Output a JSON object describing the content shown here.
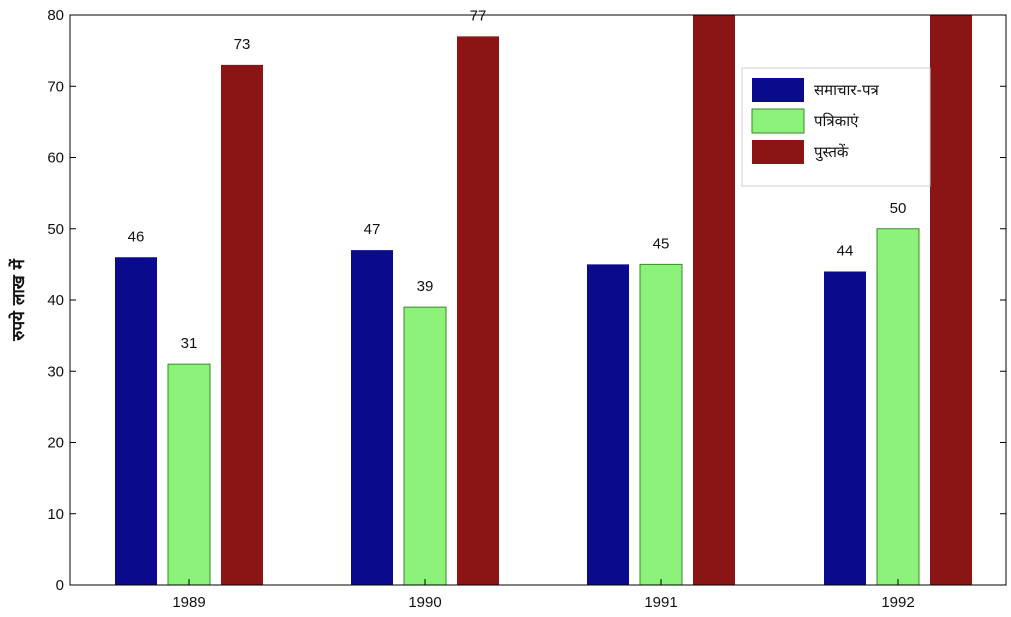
{
  "chart_data": {
    "type": "bar",
    "title": "",
    "xlabel": "",
    "ylabel": "रुपये लाख में",
    "ylim": [
      0,
      80
    ],
    "yticks": [
      0,
      10,
      20,
      30,
      40,
      50,
      60,
      70,
      80
    ],
    "categories": [
      "1989",
      "1990",
      "1991",
      "1992"
    ],
    "legend_position": "top-right",
    "grid": false,
    "series": [
      {
        "name": "समाचार-पत्र",
        "color": "#0a0a8c",
        "values": [
          46,
          47,
          45,
          44
        ],
        "labels": [
          "46",
          "47",
          "",
          "44"
        ]
      },
      {
        "name": "पत्रिकाएं",
        "color": "#8cf27a",
        "values": [
          31,
          39,
          45,
          50
        ],
        "labels": [
          "31",
          "39",
          "45",
          "50"
        ]
      },
      {
        "name": "पुस्तकें",
        "color": "#8b1414",
        "values": [
          73,
          77,
          80,
          80
        ],
        "labels": [
          "73",
          "77",
          "",
          ""
        ]
      }
    ]
  }
}
